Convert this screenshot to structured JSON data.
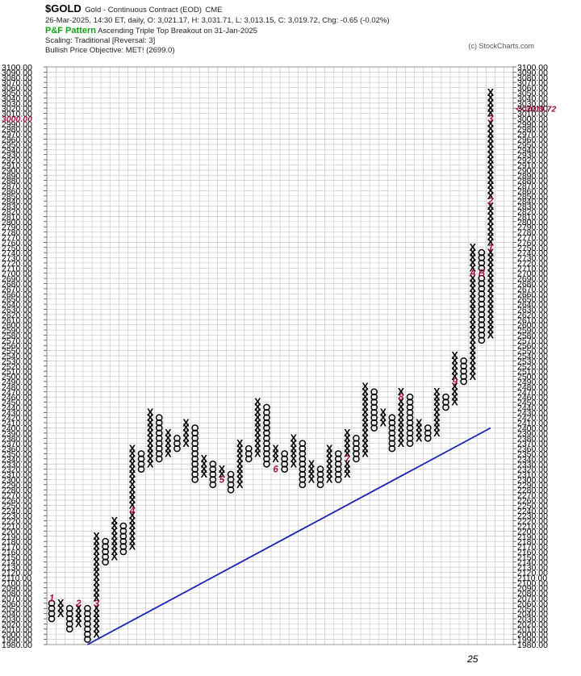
{
  "header": {
    "ticker": "$GOLD",
    "description": "Gold - Continuous Contract (EOD)",
    "exchange": "CME",
    "ohlc_line": "26-Mar-2025, 14:30 ET, daily, O: 3,021.17, H: 3,031.71, L: 3,013.15, C: 3,019.72, Chg: -0.65 (-0.02%)",
    "pattern_label": "P&F Pattern",
    "pattern_text": "Ascending Triple Top Breakout on 31-Jan-2025",
    "scaling": "Scaling: Traditional [Reversal: 3]",
    "objective": "Bullish Price Objective: MET! (2699.0)",
    "credit": "(c) StockCharts.com"
  },
  "colors": {
    "grid": "#c8c8c8",
    "box": "#000000",
    "month_marker": "#a0103a",
    "trendline": "#1a22b4",
    "highlight_price": "#a0103a"
  },
  "chart_data": {
    "type": "point-and-figure",
    "box_size": 10,
    "reversal": 3,
    "ylim": [
      1980,
      3100
    ],
    "y_tick_labels": [
      "1980.00",
      "1990.00",
      "2000.00",
      "2010.00",
      "2020.00",
      "2030.00",
      "2040.00",
      "2050.00",
      "2060.00",
      "2070.00",
      "2080.00",
      "2090.00",
      "2100.00",
      "2110.00",
      "2120.00",
      "2130.00",
      "2140.00",
      "2150.00",
      "2160.00",
      "2170.00",
      "2180.00",
      "2190.00",
      "2200.00",
      "2210.00",
      "2220.00",
      "2230.00",
      "2240.00",
      "2250.00",
      "2260.00",
      "2270.00",
      "2280.00",
      "2290.00",
      "2300.00",
      "2310.00",
      "2320.00",
      "2330.00",
      "2340.00",
      "2350.00",
      "2360.00",
      "2370.00",
      "2380.00",
      "2390.00",
      "2400.00",
      "2410.00",
      "2420.00",
      "2430.00",
      "2440.00",
      "2450.00",
      "2460.00",
      "2470.00",
      "2480.00",
      "2490.00",
      "2500.00",
      "2510.00",
      "2520.00",
      "2530.00",
      "2540.00",
      "2550.00",
      "2560.00",
      "2570.00",
      "2580.00",
      "2590.00",
      "2600.00",
      "2610.00",
      "2620.00",
      "2630.00",
      "2640.00",
      "2650.00",
      "2660.00",
      "2670.00",
      "2680.00",
      "2690.00",
      "2700.00",
      "2710.00",
      "2720.00",
      "2730.00",
      "2740.00",
      "2750.00",
      "2760.00",
      "2770.00",
      "2780.00",
      "2790.00",
      "2800.00",
      "2810.00",
      "2820.00",
      "2830.00",
      "2840.00",
      "2850.00",
      "2860.00",
      "2870.00",
      "2880.00",
      "2890.00",
      "2900.00",
      "2910.00",
      "2920.00",
      "2930.00",
      "2940.00",
      "2950.00",
      "2960.00",
      "2970.00",
      "2980.00",
      "2990.00",
      "3000.00",
      "3010.00",
      "3020.00",
      "3030.00",
      "3040.00",
      "3050.00",
      "3060.00",
      "3070.00",
      "3080.00",
      "3090.00",
      "3100.00"
    ],
    "left_axis_highlight": "3000.00",
    "last_price_label": "<<3019.72",
    "x_labels": [
      {
        "column": 47,
        "text": "25"
      }
    ],
    "columns": [
      {
        "t": "O",
        "from": 2060,
        "to": 2030
      },
      {
        "t": "X",
        "from": 2040,
        "to": 2060
      },
      {
        "t": "O",
        "from": 2050,
        "to": 2010
      },
      {
        "t": "X",
        "from": 2020,
        "to": 2060
      },
      {
        "t": "O",
        "from": 2050,
        "to": 1990
      },
      {
        "t": "X",
        "from": 2000,
        "to": 2190
      },
      {
        "t": "O",
        "from": 2180,
        "to": 2140
      },
      {
        "t": "X",
        "from": 2150,
        "to": 2220
      },
      {
        "t": "O",
        "from": 2210,
        "to": 2160
      },
      {
        "t": "X",
        "from": 2170,
        "to": 2360
      },
      {
        "t": "O",
        "from": 2350,
        "to": 2320
      },
      {
        "t": "X",
        "from": 2330,
        "to": 2430
      },
      {
        "t": "O",
        "from": 2420,
        "to": 2340
      },
      {
        "t": "X",
        "from": 2350,
        "to": 2390
      },
      {
        "t": "O",
        "from": 2380,
        "to": 2360
      },
      {
        "t": "X",
        "from": 2370,
        "to": 2410
      },
      {
        "t": "O",
        "from": 2400,
        "to": 2300
      },
      {
        "t": "X",
        "from": 2310,
        "to": 2340
      },
      {
        "t": "O",
        "from": 2330,
        "to": 2290
      },
      {
        "t": "X",
        "from": 2300,
        "to": 2320
      },
      {
        "t": "O",
        "from": 2310,
        "to": 2280
      },
      {
        "t": "X",
        "from": 2290,
        "to": 2370
      },
      {
        "t": "O",
        "from": 2360,
        "to": 2340
      },
      {
        "t": "X",
        "from": 2350,
        "to": 2450
      },
      {
        "t": "O",
        "from": 2440,
        "to": 2330
      },
      {
        "t": "X",
        "from": 2340,
        "to": 2360
      },
      {
        "t": "O",
        "from": 2350,
        "to": 2320
      },
      {
        "t": "X",
        "from": 2330,
        "to": 2380
      },
      {
        "t": "O",
        "from": 2370,
        "to": 2290
      },
      {
        "t": "X",
        "from": 2300,
        "to": 2330
      },
      {
        "t": "O",
        "from": 2320,
        "to": 2290
      },
      {
        "t": "X",
        "from": 2300,
        "to": 2360
      },
      {
        "t": "O",
        "from": 2350,
        "to": 2300
      },
      {
        "t": "X",
        "from": 2310,
        "to": 2390
      },
      {
        "t": "O",
        "from": 2380,
        "to": 2340
      },
      {
        "t": "X",
        "from": 2350,
        "to": 2480
      },
      {
        "t": "O",
        "from": 2470,
        "to": 2400
      },
      {
        "t": "X",
        "from": 2410,
        "to": 2430
      },
      {
        "t": "O",
        "from": 2420,
        "to": 2360
      },
      {
        "t": "X",
        "from": 2370,
        "to": 2470
      },
      {
        "t": "O",
        "from": 2460,
        "to": 2370
      },
      {
        "t": "X",
        "from": 2380,
        "to": 2410
      },
      {
        "t": "O",
        "from": 2400,
        "to": 2380
      },
      {
        "t": "X",
        "from": 2390,
        "to": 2470
      },
      {
        "t": "O",
        "from": 2460,
        "to": 2440
      },
      {
        "t": "X",
        "from": 2450,
        "to": 2540
      },
      {
        "t": "O",
        "from": 2530,
        "to": 2490
      },
      {
        "t": "X",
        "from": 2500,
        "to": 2750
      },
      {
        "t": "O",
        "from": 2740,
        "to": 2570
      },
      {
        "t": "X",
        "from": 2580,
        "to": 3050
      }
    ],
    "markers": [
      {
        "column": 0,
        "price": 2070,
        "text": "1"
      },
      {
        "column": 3,
        "price": 2060,
        "text": "2"
      },
      {
        "column": 5,
        "price": 2060,
        "text": "3"
      },
      {
        "column": 9,
        "price": 2240,
        "text": "4"
      },
      {
        "column": 19,
        "price": 2300,
        "text": "5"
      },
      {
        "column": 25,
        "price": 2320,
        "text": "6"
      },
      {
        "column": 33,
        "price": 2340,
        "text": "7"
      },
      {
        "column": 39,
        "price": 2460,
        "text": "8"
      },
      {
        "column": 45,
        "price": 2490,
        "text": "9"
      },
      {
        "column": 47,
        "price": 2700,
        "text": "A"
      },
      {
        "column": 48,
        "price": 2700,
        "text": "B"
      },
      {
        "column": 49,
        "price": 2750,
        "text": "1"
      },
      {
        "column": 49,
        "price": 2840,
        "text": "2"
      },
      {
        "column": 49,
        "price": 3000,
        "text": "3"
      }
    ],
    "trendlines": [
      {
        "name": "bullish-support-line",
        "from": {
          "column": 4,
          "price": 1980
        },
        "to": {
          "column": 49,
          "price": 2400
        }
      }
    ]
  }
}
